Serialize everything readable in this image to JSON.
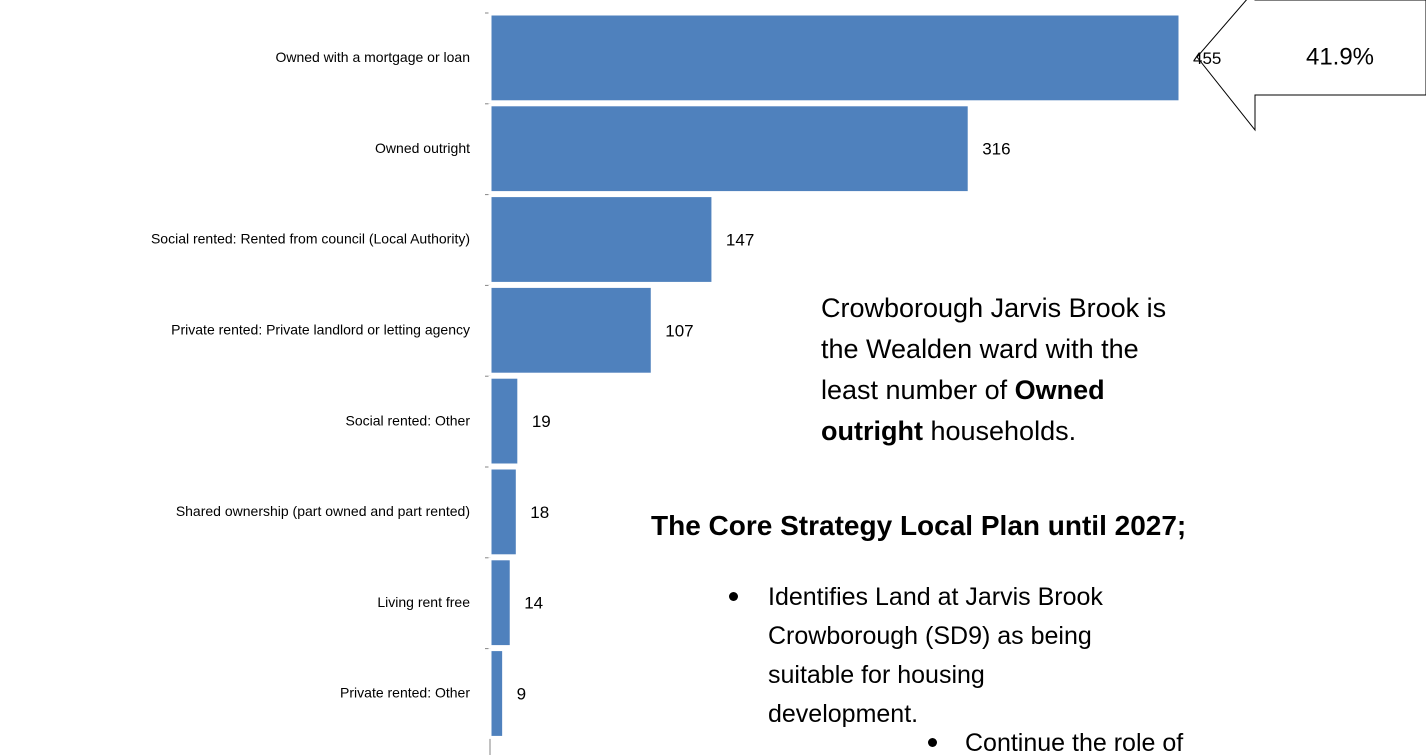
{
  "chart_data": {
    "type": "bar",
    "orientation": "horizontal",
    "categories": [
      "Owned with a mortgage or loan",
      "Owned outright",
      "Social rented: Rented from council (Local Authority)",
      "Private rented: Private landlord or letting agency",
      "Social rented: Other",
      "Shared ownership (part owned and part rented)",
      "Living rent free",
      "Private rented: Other"
    ],
    "values": [
      455,
      316,
      147,
      107,
      19,
      18,
      14,
      9
    ],
    "color": "#4f81bd"
  },
  "callout": "41.9%",
  "summary": [
    "Crowborough Jarvis Brook is the Wealden ward with the least number of ",
    "Owned outright",
    " households."
  ],
  "heading": "The Core Strategy Local Plan until 2027;",
  "bullets": [
    "Identifies Land at Jarvis Brook Crowborough (SD9) as being suitable for housing development.",
    "Continue the role of"
  ]
}
